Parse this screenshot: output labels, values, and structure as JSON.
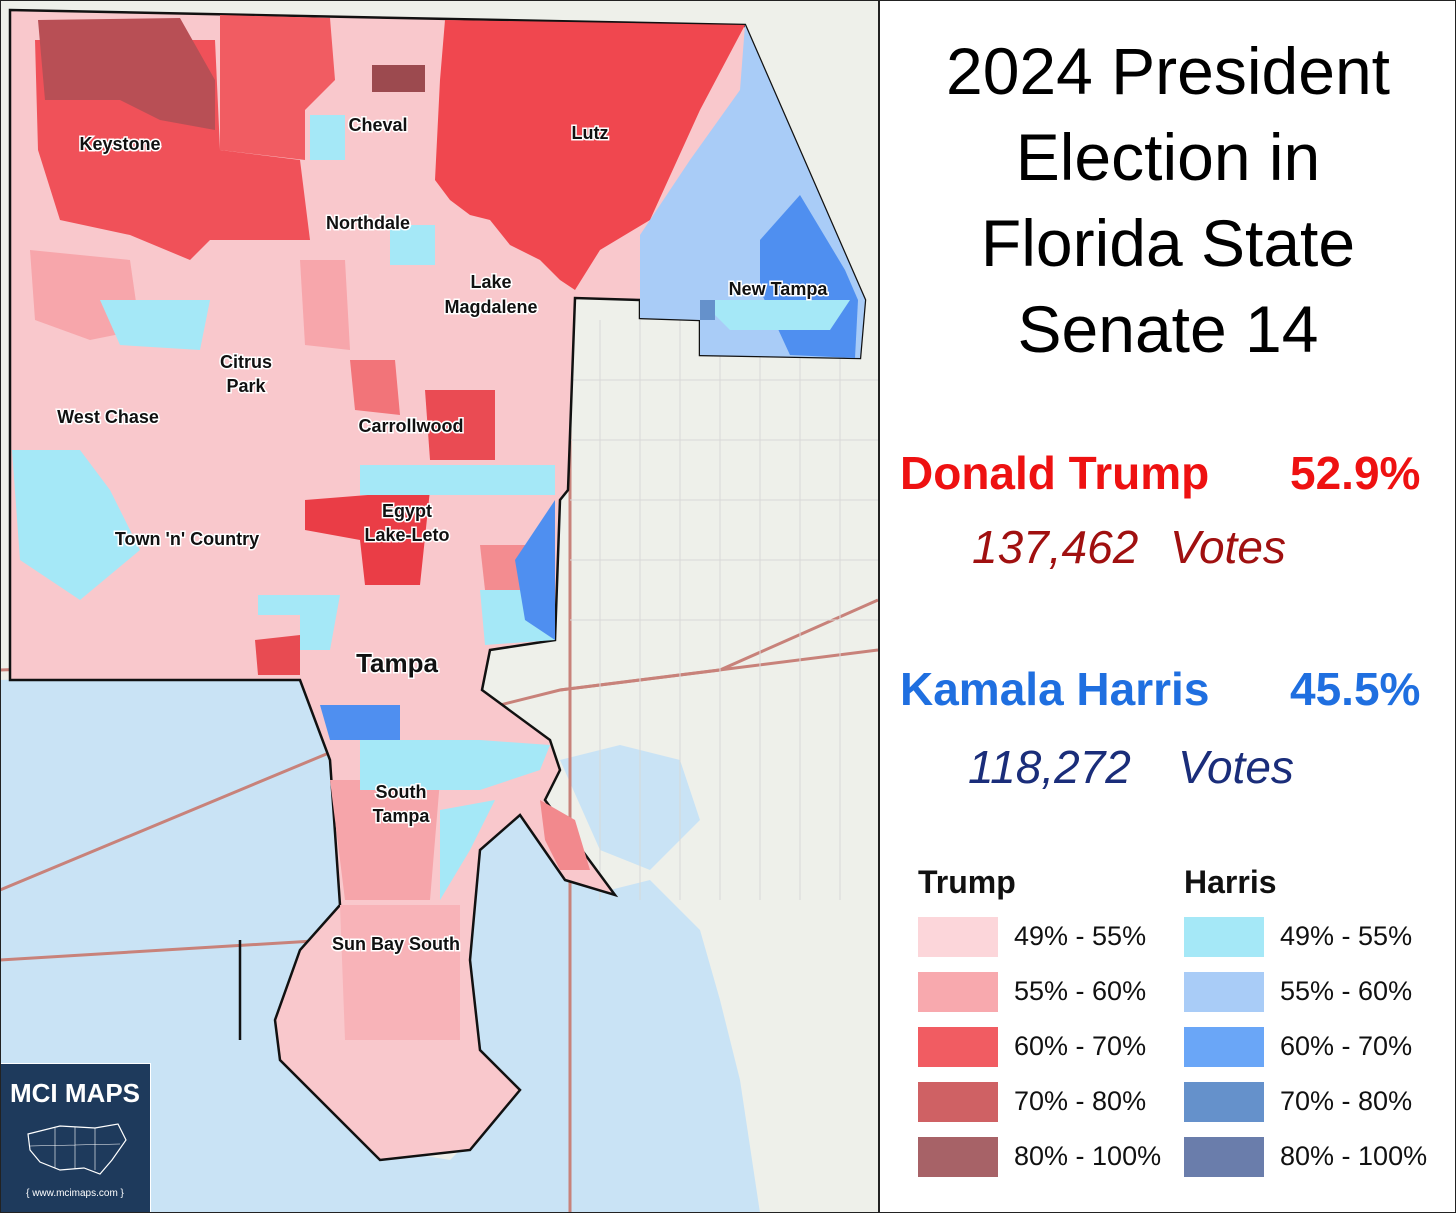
{
  "title": [
    "2024 President",
    "Election in",
    "Florida State",
    "Senate 14"
  ],
  "results": {
    "trump": {
      "name": "Donald Trump",
      "pct": "52.9%",
      "votes": "137,462",
      "votes_word": "Votes",
      "color": "#ee1111",
      "votes_color": "#a01010"
    },
    "harris": {
      "name": "Kamala Harris",
      "pct": "45.5%",
      "votes": "118,272",
      "votes_word": "Votes",
      "color": "#1f6fe0",
      "votes_color": "#1a2d7a"
    }
  },
  "legend": {
    "trump_header": "Trump",
    "harris_header": "Harris",
    "ranges": [
      "49% - 55%",
      "55% - 60%",
      "60% - 70%",
      "70% - 80%",
      "80% - 100%"
    ],
    "trump_colors": [
      "#fcd6da",
      "#f8a9ae",
      "#f15c62",
      "#cf6164",
      "#a76267"
    ],
    "harris_colors": [
      "#a5e8f7",
      "#a9ccf7",
      "#6aa6f7",
      "#6591cb",
      "#6a7dab"
    ]
  },
  "places": {
    "keystone": "Keystone",
    "cheval": "Cheval",
    "lutz": "Lutz",
    "northdale": "Northdale",
    "lake": "Lake",
    "magdalene": "Magdalene",
    "new_tampa": "New Tampa",
    "citrus": "Citrus",
    "park": "Park",
    "west_chase": "West Chase",
    "carrollwood": "Carrollwood",
    "egypt": "Egypt",
    "lake_leto": "Lake-Leto",
    "town_n_country": "Town 'n' Country",
    "tampa": "Tampa",
    "south": "South",
    "south_tampa": "Tampa",
    "sun_bay_south": "Sun Bay South"
  },
  "badge": {
    "title": "MCI MAPS",
    "url": "{ www.mcimaps.com }"
  }
}
